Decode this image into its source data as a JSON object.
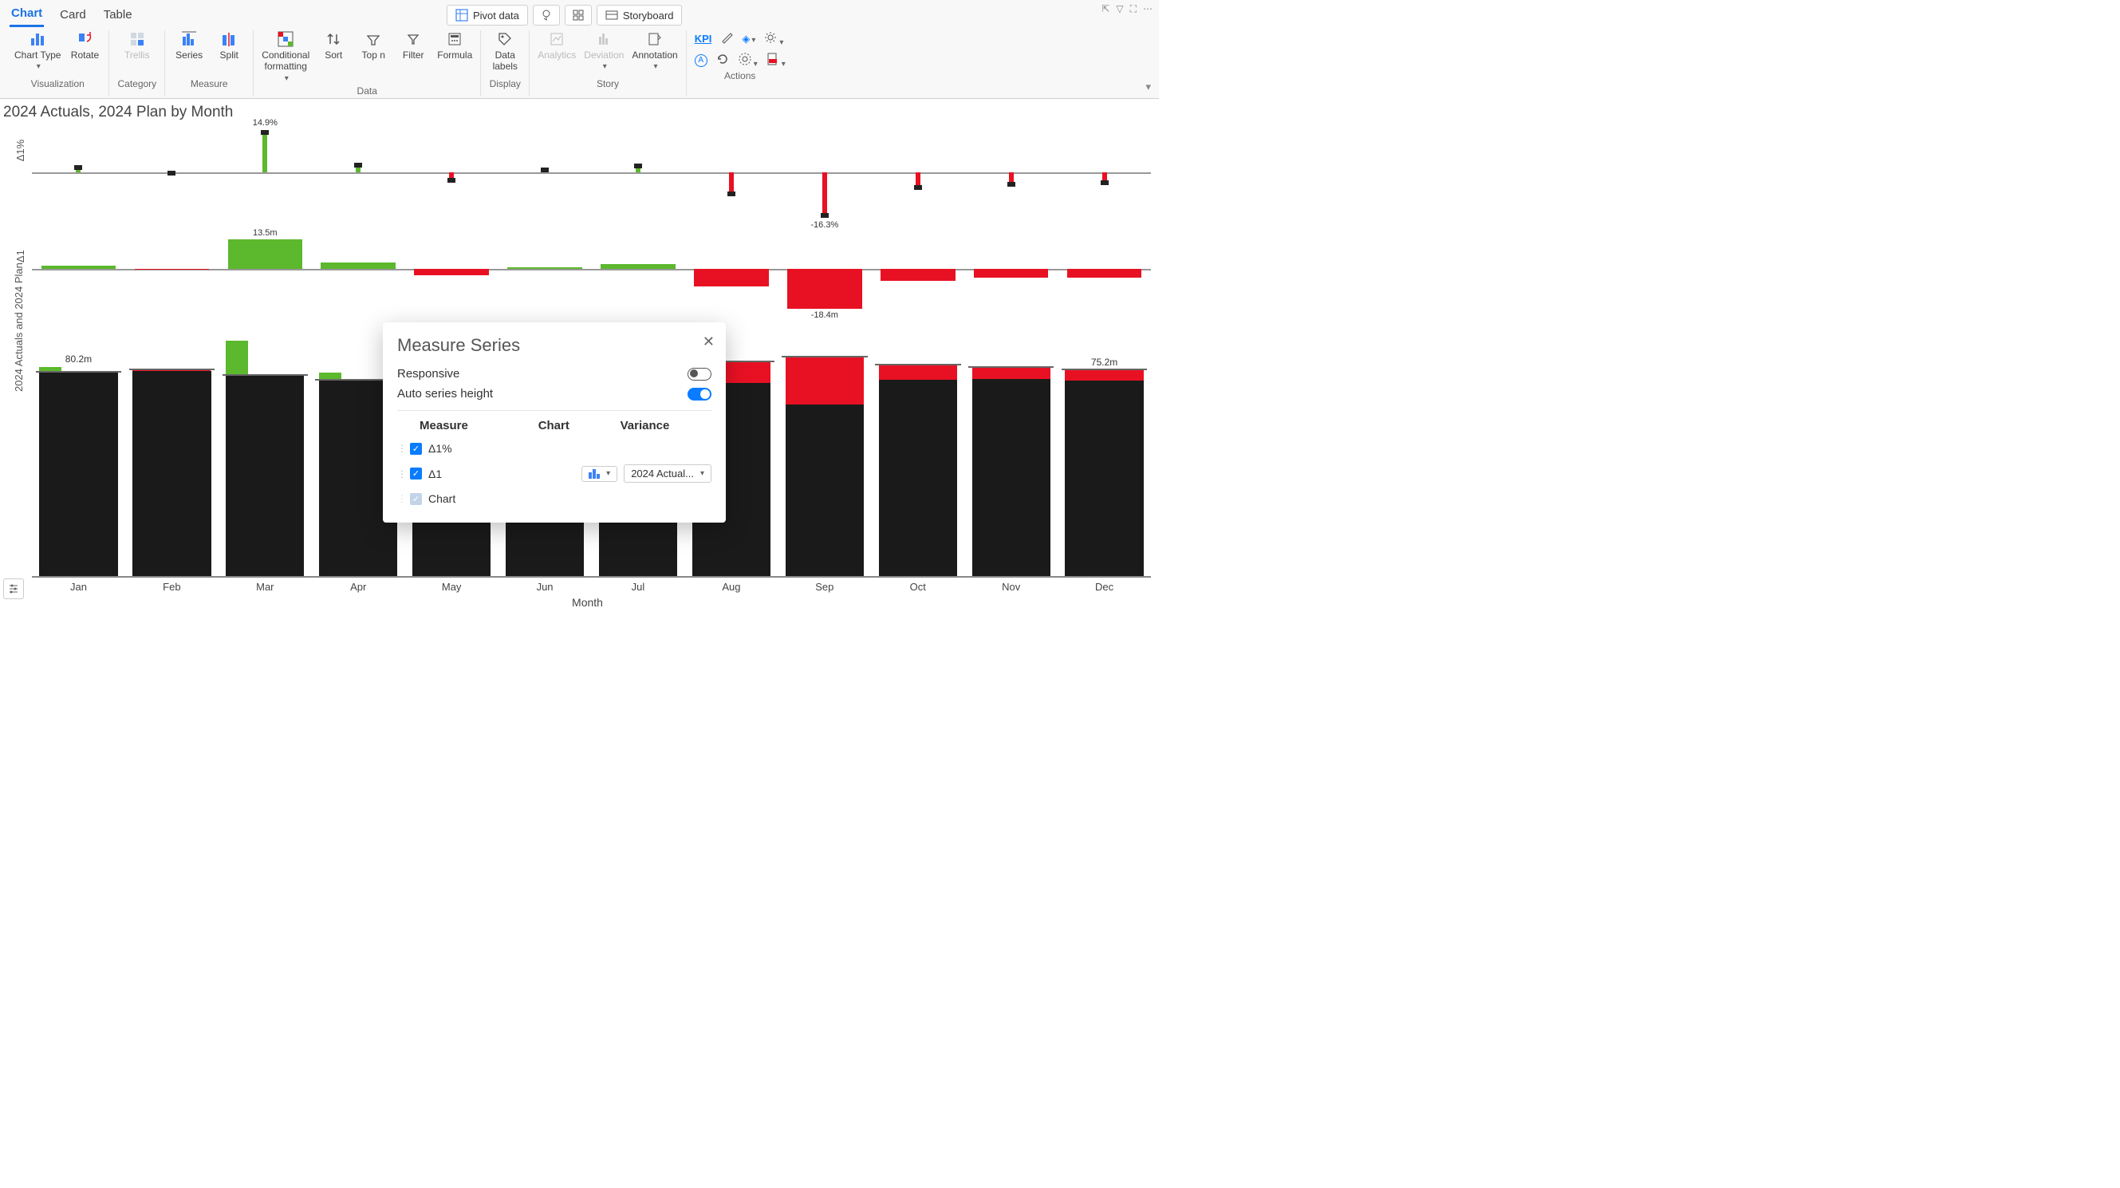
{
  "tabs": {
    "chart": "Chart",
    "card": "Card",
    "table": "Table",
    "active": "chart"
  },
  "topActions": {
    "pivot": "Pivot data",
    "storyboard": "Storyboard"
  },
  "ribbon": {
    "visualization": {
      "chartType": "Chart Type",
      "rotate": "Rotate",
      "label": "Visualization"
    },
    "category": {
      "trellis": "Trellis",
      "label": "Category"
    },
    "measure": {
      "series": "Series",
      "split": "Split",
      "label": "Measure"
    },
    "data": {
      "conditional": "Conditional\nformatting",
      "sort": "Sort",
      "topn": "Top n",
      "filter": "Filter",
      "formula": "Formula",
      "label": "Data"
    },
    "display": {
      "dataLabels": "Data\nlabels",
      "label": "Display"
    },
    "story": {
      "analytics": "Analytics",
      "deviation": "Deviation",
      "annotation": "Annotation",
      "label": "Story"
    },
    "actions": {
      "kpi": "KPI",
      "label": "Actions"
    }
  },
  "chart": {
    "title": "2024 Actuals, 2024 Plan by Month",
    "xTitle": "Month",
    "yTitle": "2024 Actuals and 2024 Plan",
    "delta1pctLabel": "Δ1%",
    "delta1Label": "Δ1",
    "months": [
      "Jan",
      "Feb",
      "Mar",
      "Apr",
      "May",
      "Jun",
      "Jul",
      "Aug",
      "Sep",
      "Oct",
      "Nov",
      "Dec"
    ],
    "colors": {
      "pos": "#5cb82c",
      "neg": "#e81123",
      "plan": "#1a1a1a",
      "axis": "#888888"
    },
    "pct": {
      "values": [
        1.8,
        -0.4,
        14.9,
        2.6,
        -3.0,
        0.9,
        2.2,
        -8.2,
        -16.3,
        -5.8,
        -4.5,
        -4.0
      ],
      "topLabel": "14.9%",
      "topLabelIdx": 2,
      "bottomLabel": "-16.3%",
      "bottomLabelIdx": 8,
      "maxAbs": 18
    },
    "abs": {
      "values": [
        1.5,
        -0.3,
        13.5,
        3.0,
        -3.0,
        0.8,
        2.0,
        -8.0,
        -18.4,
        -5.5,
        -4.2,
        -4.0
      ],
      "topLabel": "13.5m",
      "topLabelIdx": 2,
      "bottomLabel": "-18.4m",
      "bottomLabelIdx": 8,
      "maxAbs": 20
    },
    "main": {
      "plan": [
        78,
        79,
        77,
        75,
        78,
        76,
        77,
        82,
        84,
        81,
        80,
        79
      ],
      "actual": [
        80.2,
        78.7,
        90.5,
        78,
        75,
        76.8,
        79,
        74,
        66,
        75.5,
        75.8,
        75.2
      ],
      "leftLabel": "80.2m",
      "leftLabelIdx": 0,
      "rightLabel": "75.2m",
      "rightLabelIdx": 11,
      "yMax": 92
    }
  },
  "popup": {
    "title": "Measure Series",
    "responsive": "Responsive",
    "autoHeight": "Auto series height",
    "headers": {
      "measure": "Measure",
      "chart": "Chart",
      "variance": "Variance"
    },
    "rows": {
      "r1": "Δ1%",
      "r2": "Δ1",
      "r3": "Chart",
      "variance": "2024 Actual..."
    }
  }
}
